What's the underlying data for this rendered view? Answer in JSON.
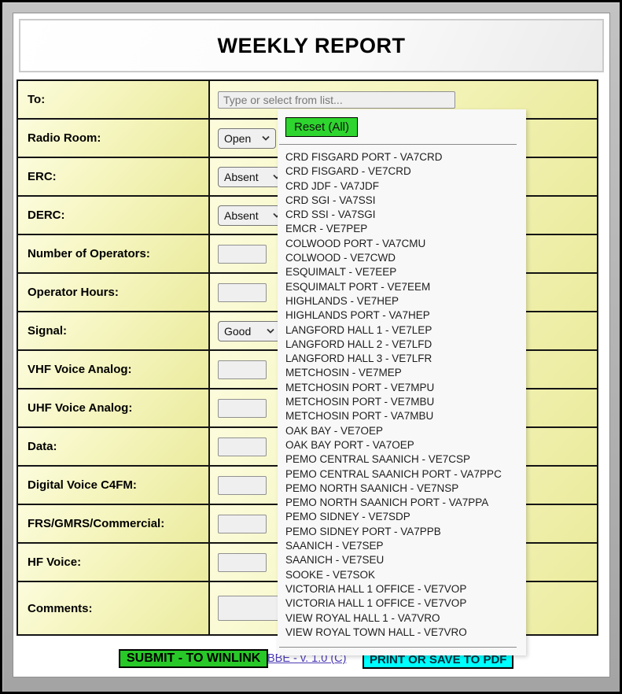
{
  "window": {
    "title": "WEEKLY REPORT"
  },
  "form": {
    "rows": [
      {
        "key": "to",
        "label": "To:",
        "control": "text",
        "placeholder": "Type or select from list...",
        "value": ""
      },
      {
        "key": "radio_room",
        "label": "Radio Room:",
        "control": "select",
        "value": "Open"
      },
      {
        "key": "erc",
        "label": "ERC:",
        "control": "select",
        "value": "Absent"
      },
      {
        "key": "derc",
        "label": "DERC:",
        "control": "select",
        "value": "Absent"
      },
      {
        "key": "number_of_operators",
        "label": "Number of Operators:",
        "control": "input-small",
        "value": ""
      },
      {
        "key": "operator_hours",
        "label": "Operator Hours:",
        "control": "input-small",
        "value": ""
      },
      {
        "key": "signal",
        "label": "Signal:",
        "control": "select",
        "value": "Good"
      },
      {
        "key": "vhf_voice_analog",
        "label": "VHF Voice Analog:",
        "control": "input-small",
        "value": ""
      },
      {
        "key": "uhf_voice_analog",
        "label": "UHF Voice Analog:",
        "control": "input-small",
        "value": ""
      },
      {
        "key": "data",
        "label": "Data:",
        "control": "input-small",
        "value": ""
      },
      {
        "key": "digital_voice_c4fm",
        "label": "Digital Voice C4FM:",
        "control": "input-small",
        "value": ""
      },
      {
        "key": "frs_gmrs_commercial",
        "label": "FRS/GMRS/Commercial:",
        "control": "input-small",
        "value": ""
      },
      {
        "key": "hf_voice",
        "label": "HF Voice:",
        "control": "input-small",
        "value": ""
      },
      {
        "key": "comments",
        "label": "Comments:",
        "control": "input-wide",
        "value": ""
      }
    ]
  },
  "dropdown": {
    "reset_label": "Reset (All)",
    "items": [
      "CRD FISGARD PORT - VA7CRD",
      "CRD FISGARD - VE7CRD",
      "CRD JDF - VA7JDF",
      "CRD SGI - VA7SSI",
      "CRD SSI - VA7SGI",
      "EMCR - VE7PEP",
      "COLWOOD PORT - VA7CMU",
      "COLWOOD - VE7CWD",
      "ESQUIMALT - VE7EEP",
      "ESQUIMALT PORT - VE7EEM",
      "HIGHLANDS - VE7HEP",
      "HIGHLANDS PORT - VA7HEP",
      "LANGFORD HALL 1 - VE7LEP",
      "LANGFORD HALL 2 - VE7LFD",
      "LANGFORD HALL 3 - VE7LFR",
      "METCHOSIN - VE7MEP",
      "METCHOSIN PORT - VE7MPU",
      "METCHOSIN PORT - VE7MBU",
      "METCHOSIN PORT - VA7MBU",
      "OAK BAY - VE7OEP",
      "OAK BAY PORT - VA7OEP",
      "PEMO CENTRAL SAANICH - VE7CSP",
      "PEMO CENTRAL SAANICH PORT - VA7PPC",
      "PEMO NORTH SAANICH - VE7NSP",
      "PEMO NORTH SAANICH PORT - VA7PPA",
      "PEMO SIDNEY - VE7SDP",
      "PEMO SIDNEY PORT - VA7PPB",
      "SAANICH - VE7SEP",
      "SAANICH - VE7SEU",
      "SOOKE - VE7SOK",
      "VICTORIA HALL 1 OFFICE - VE7VOP",
      "VICTORIA HALL 1 OFFICE - VE7VOP",
      "VIEW ROYAL HALL 1 - VA7VRO",
      "VIEW ROYAL TOWN HALL - VE7VRO"
    ]
  },
  "footer": {
    "submit_label": "SUBMIT - TO WINLINK",
    "version_link": "BBE - v. 1.0 (C)",
    "print_label": "PRINT OR SAVE TO PDF"
  },
  "colors": {
    "reset_green": "#2ed52e",
    "submit_green": "#28c828",
    "print_cyan": "#00ffff",
    "link_blue": "#4a3ab4",
    "cell_yellow": "#f5f5bf"
  }
}
